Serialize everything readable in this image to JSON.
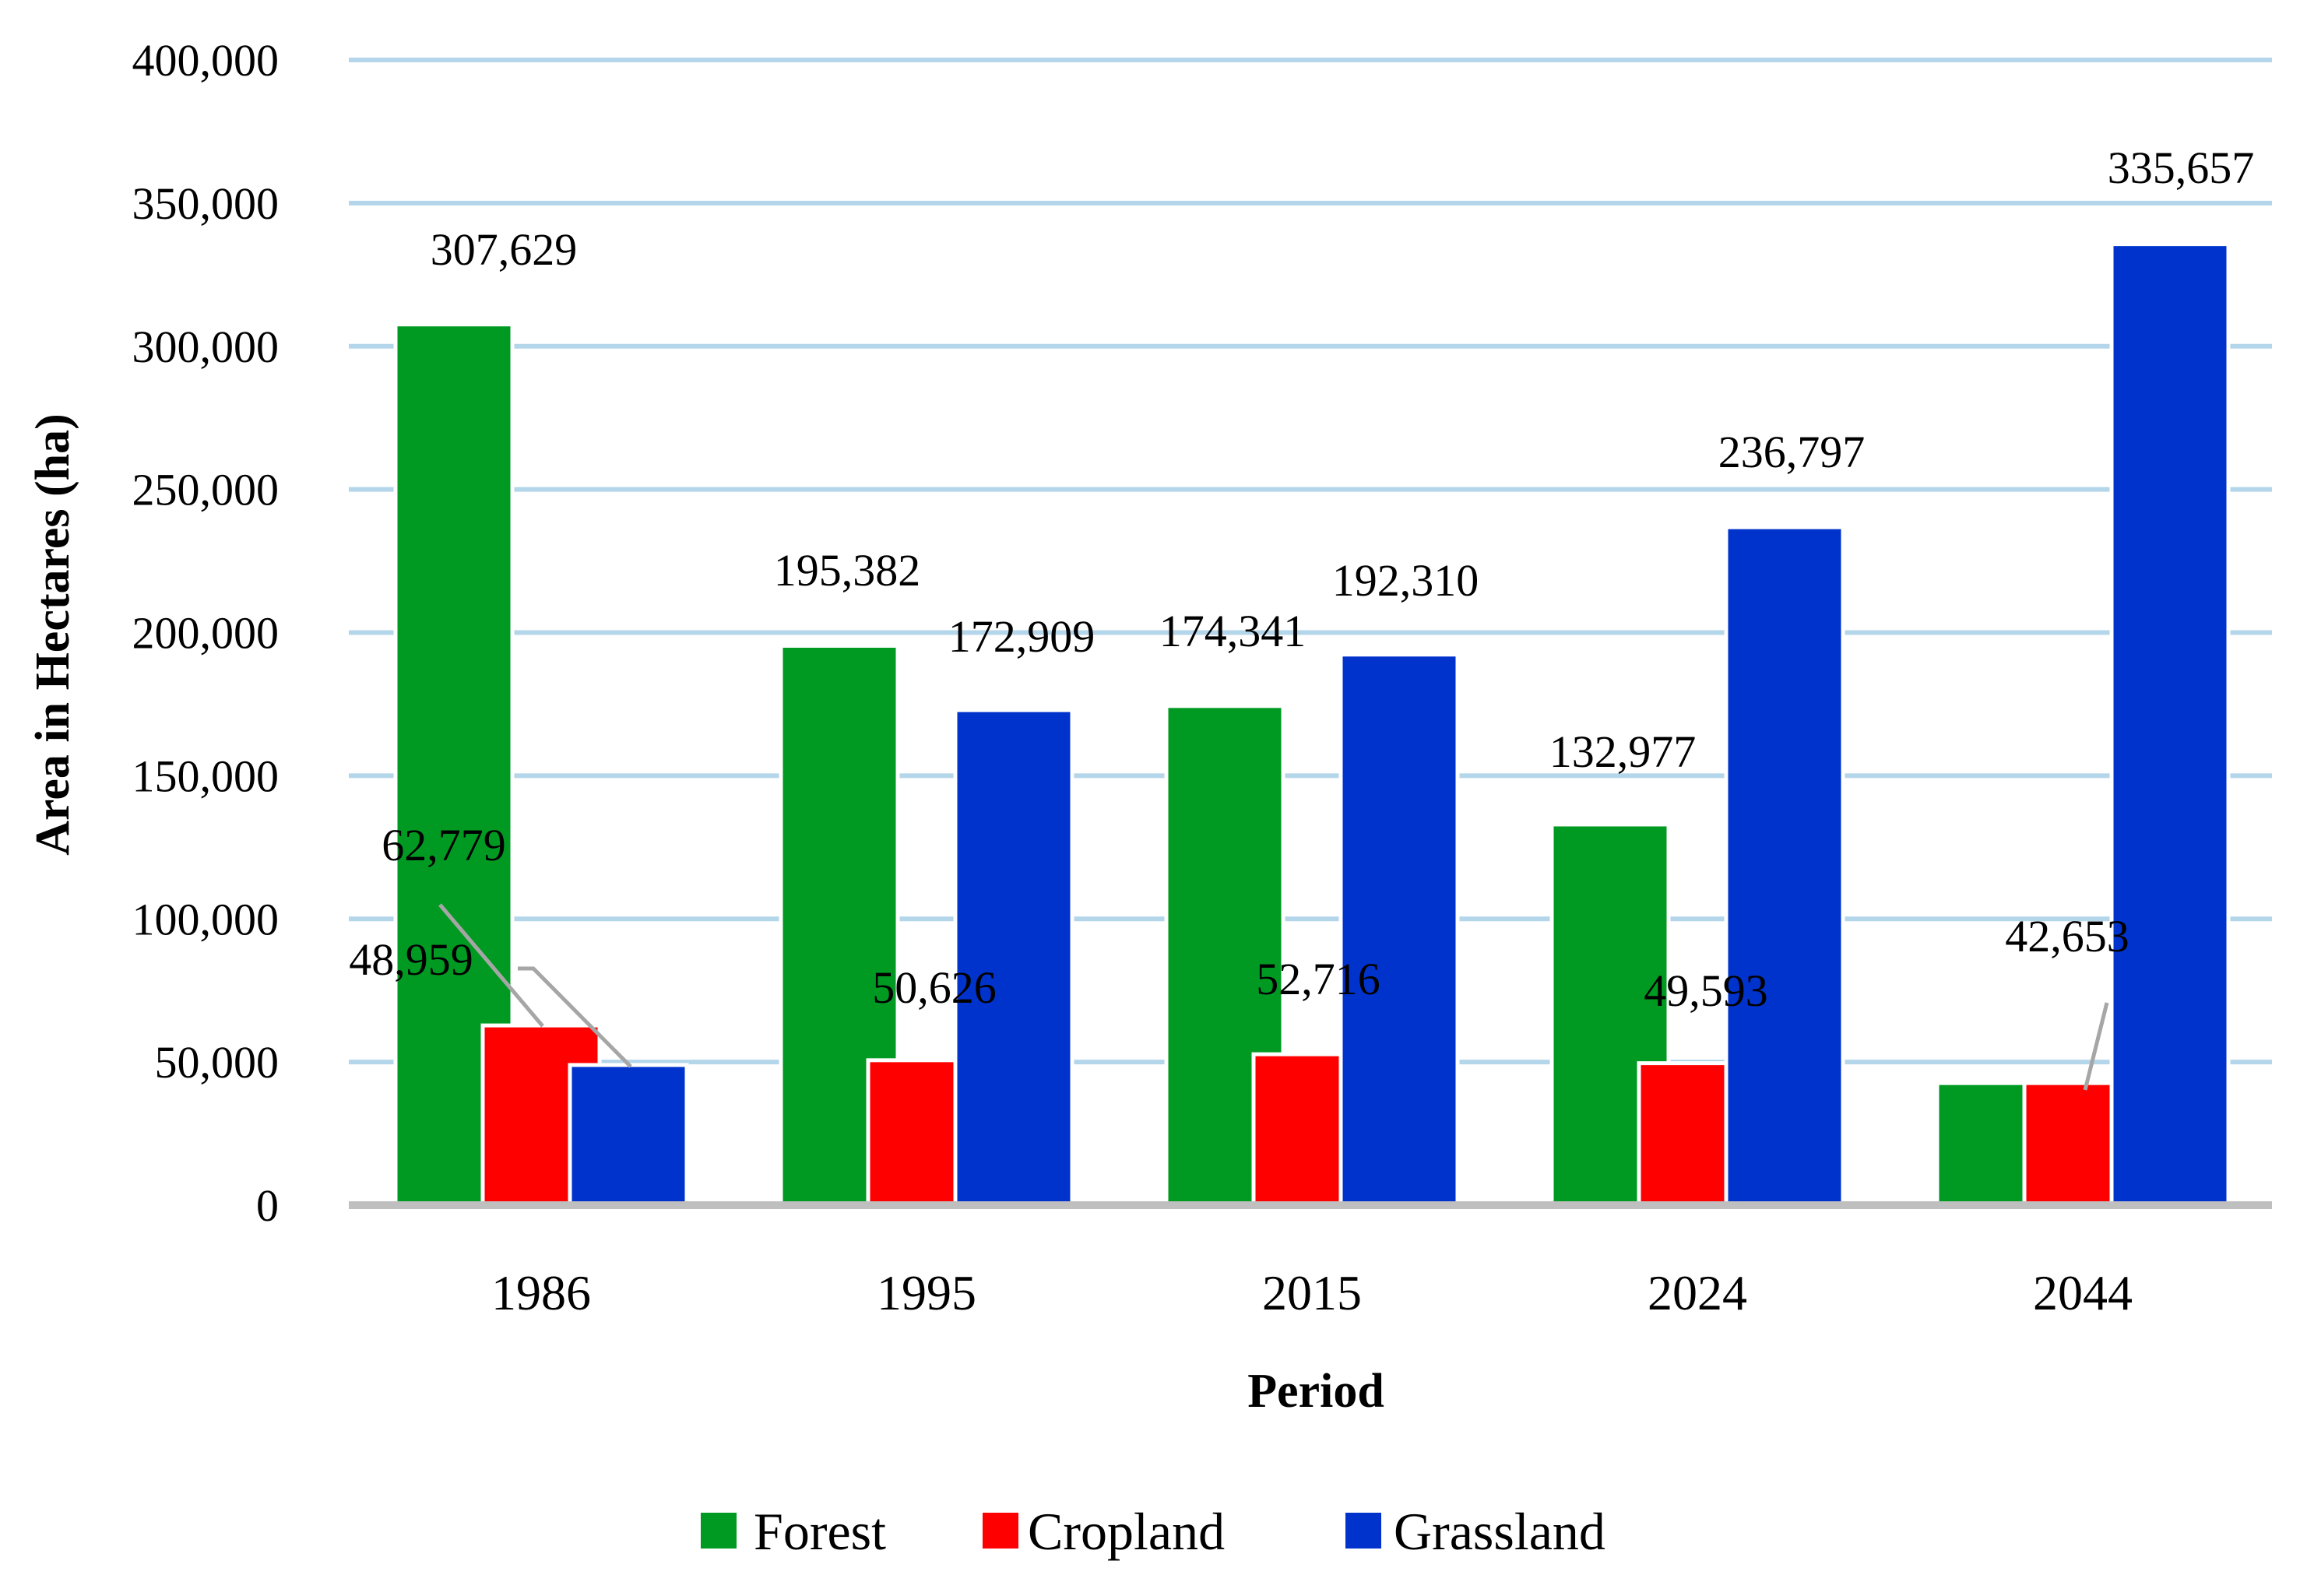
{
  "chart_data": {
    "type": "bar",
    "title": "",
    "xlabel": "Period",
    "ylabel": "Area in Hectares (ha)",
    "ylim": [
      0,
      400000
    ],
    "yticks": [
      0,
      50000,
      100000,
      150000,
      200000,
      250000,
      300000,
      350000,
      400000
    ],
    "ytick_labels": [
      "0",
      "50,000",
      "100,000",
      "150,000",
      "200,000",
      "250,000",
      "300,000",
      "350,000",
      "400,000"
    ],
    "grid": true,
    "legend_position": "bottom-center",
    "categories": [
      "1986",
      "1995",
      "2015",
      "2024",
      "2044"
    ],
    "series": [
      {
        "name": "Forest",
        "color": "#009a22",
        "values": [
          307629,
          195382,
          174341,
          132977,
          42653
        ],
        "data_labels": [
          "307,629",
          "195,382",
          "174,341",
          "132,977",
          null
        ]
      },
      {
        "name": "Cropland",
        "color": "#ff0000",
        "values": [
          62779,
          50626,
          52716,
          49593,
          42653
        ],
        "data_labels": [
          "62,779",
          "50,626",
          "52,716",
          "49,593",
          "42,653"
        ]
      },
      {
        "name": "Grassland",
        "color": "#0033cc",
        "values": [
          48959,
          172909,
          192310,
          236797,
          335657
        ],
        "data_labels": [
          "48,959",
          "172,909",
          "192,310",
          "236,797",
          "335,657"
        ]
      }
    ]
  }
}
